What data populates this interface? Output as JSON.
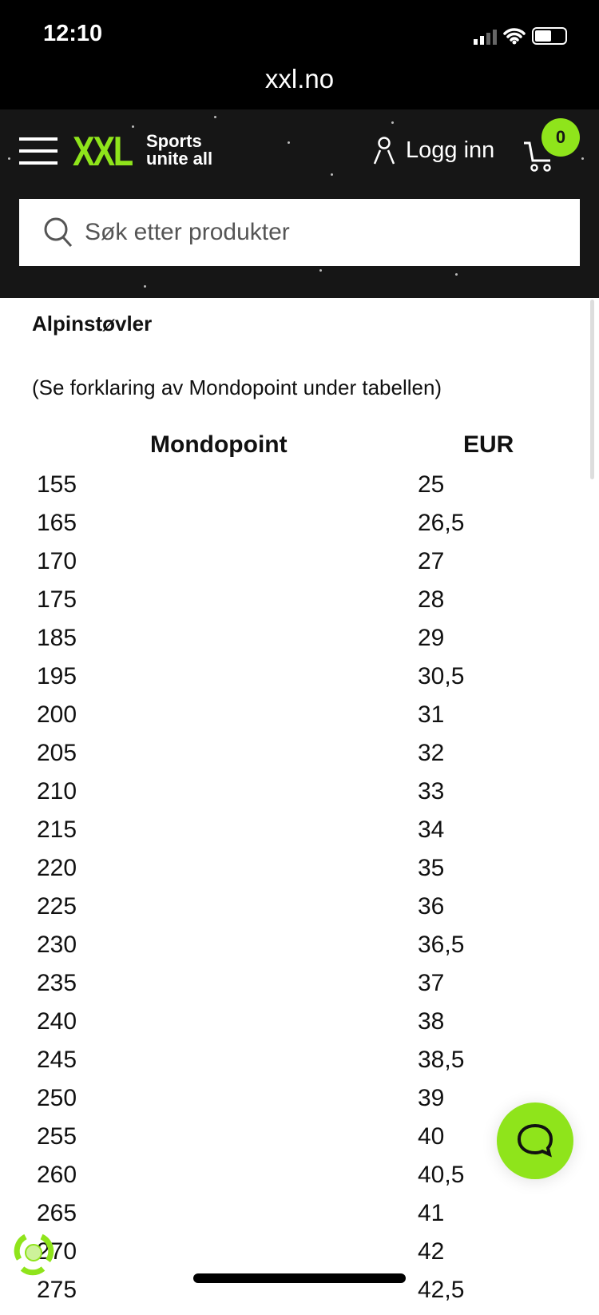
{
  "status_bar": {
    "time": "12:10",
    "url": "xxl.no"
  },
  "header": {
    "logo": "XXL",
    "tagline_1": "Sports",
    "tagline_2": "unite all",
    "login_label": "Logg inn",
    "cart_count": "0",
    "brand_color": "#8fe41b"
  },
  "search": {
    "placeholder": "Søk etter produkter"
  },
  "content": {
    "title": "Alpinstøvler",
    "subtitle": "(Se forklaring av Mondopoint under tabellen)",
    "table": {
      "headers": [
        "Mondopoint",
        "EUR"
      ],
      "rows": [
        [
          "155",
          "25"
        ],
        [
          "165",
          "26,5"
        ],
        [
          "170",
          "27"
        ],
        [
          "175",
          "28"
        ],
        [
          "185",
          "29"
        ],
        [
          "195",
          "30,5"
        ],
        [
          "200",
          "31"
        ],
        [
          "205",
          "32"
        ],
        [
          "210",
          "33"
        ],
        [
          "215",
          "34"
        ],
        [
          "220",
          "35"
        ],
        [
          "225",
          "36"
        ],
        [
          "230",
          "36,5"
        ],
        [
          "235",
          "37"
        ],
        [
          "240",
          "38"
        ],
        [
          "245",
          "38,5"
        ],
        [
          "250",
          "39"
        ],
        [
          "255",
          "40"
        ],
        [
          "260",
          "40,5"
        ],
        [
          "265",
          "41"
        ],
        [
          "270",
          "42"
        ],
        [
          "275",
          "42,5"
        ]
      ]
    }
  }
}
